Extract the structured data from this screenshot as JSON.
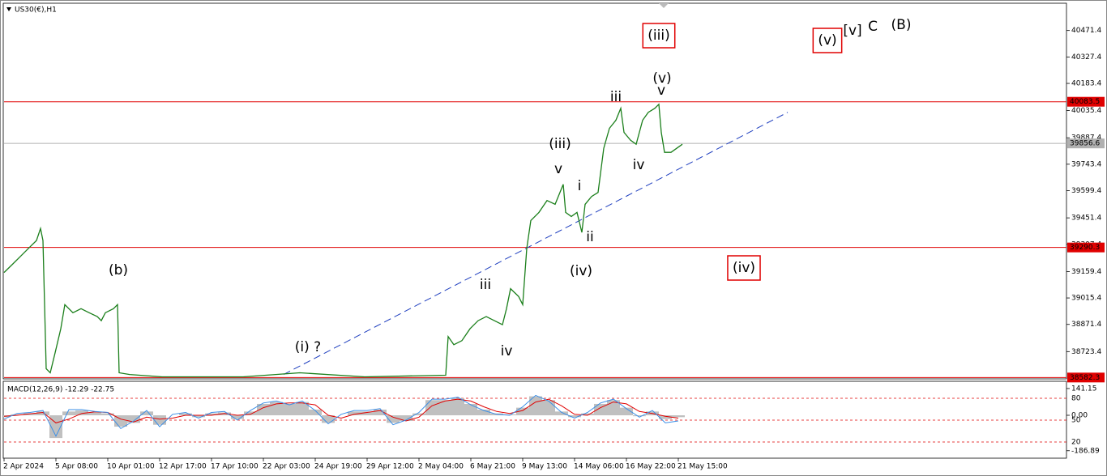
{
  "chart_data": [
    {
      "type": "line",
      "title": "US30(€),H1",
      "color": "#1b7f1b",
      "x": [
        0,
        1.25,
        2.5,
        3.75,
        5,
        5.625,
        6,
        6.5,
        7.125,
        7.875,
        8.75,
        9.375,
        10.625,
        11.875,
        13.125,
        14.375,
        15,
        15.625,
        16.875,
        17.5,
        17.75,
        19.375,
        24.375,
        36.875,
        45.625,
        55.625,
        68.125,
        68.5,
        69.375,
        70.625,
        71.875,
        73.125,
        74.375,
        75.625,
        76.875,
        77.5,
        78.125,
        79.375,
        80,
        80.625,
        81.25,
        82.5,
        83.75,
        85,
        86.25,
        86.625,
        87.5,
        88.375,
        89.125,
        89.625,
        90.625,
        91.625,
        92.5,
        93.375,
        94.375,
        95.125,
        95.625,
        96.625,
        97.5,
        98.5,
        99.375,
        100.375,
        101,
        101.375,
        101.875,
        102.875,
        103.75,
        104.625
      ],
      "values": [
        39154,
        39197,
        39241,
        39285,
        39328,
        39394,
        39328,
        38630,
        38608,
        38717,
        38848,
        38979,
        38935,
        38957,
        38935,
        38914,
        38892,
        38935,
        38957,
        38979,
        38608,
        38599,
        38586,
        38586,
        38608,
        38586,
        38595,
        38805,
        38761,
        38783,
        38848,
        38892,
        38914,
        38892,
        38870,
        38957,
        39066,
        39023,
        38979,
        39285,
        39437,
        39481,
        39546,
        39525,
        39634,
        39481,
        39459,
        39481,
        39372,
        39525,
        39568,
        39590,
        39830,
        39939,
        39983,
        40048,
        39917,
        39874,
        39852,
        39983,
        40026,
        40048,
        40070,
        39917,
        39808,
        39808,
        39830,
        39852
      ],
      "xlim": [
        0,
        163.875
      ],
      "ylim": [
        38579.4,
        40615.4
      ],
      "xticks": [
        {
          "value": 0,
          "label": "2 Apr 2024"
        },
        {
          "value": 8,
          "label": "5 Apr 08:00"
        },
        {
          "value": 16,
          "label": "10 Apr 01:00"
        },
        {
          "value": 24,
          "label": "12 Apr 17:00"
        },
        {
          "value": 32,
          "label": "17 Apr 10:00"
        },
        {
          "value": 40,
          "label": "22 Apr 03:00"
        },
        {
          "value": 48,
          "label": "24 Apr 19:00"
        },
        {
          "value": 56,
          "label": "29 Apr 12:00"
        },
        {
          "value": 64,
          "label": "2 May 04:00"
        },
        {
          "value": 72,
          "label": "6 May 21:00"
        },
        {
          "value": 80,
          "label": "9 May 13:00"
        },
        {
          "value": 88,
          "label": "14 May 06:00"
        },
        {
          "value": 96,
          "label": "16 May 22:00"
        },
        {
          "value": 104,
          "label": "21 May 15:00"
        }
      ],
      "yticks": [
        40471.4,
        40327.4,
        40183.4,
        40035.4,
        39887.4,
        39743.4,
        39599.4,
        39451.4,
        39307.4,
        39159.4,
        39015.4,
        38871.4,
        38723.4
      ],
      "hlines": [
        {
          "value": 40083.5,
          "color": "#e00000"
        },
        {
          "value": 39856.6,
          "color": "#b0b0b0"
        },
        {
          "value": 39290.3,
          "color": "#e00000"
        },
        {
          "value": 38582.3,
          "color": "#e00000"
        }
      ],
      "trendline": {
        "x": [
          43.125,
          120.875
        ],
        "values": [
          38599,
          40026
        ],
        "color": "#1f3fbf"
      },
      "annotations": [
        {
          "text": "(iii)",
          "color": "#1a1ad6",
          "boxed": true
        },
        {
          "text": "(v)",
          "color": "#1a1ad6",
          "boxed": true
        },
        {
          "text": "[v]",
          "color": "#1b8f1b",
          "boxed": false
        },
        {
          "text": "C",
          "color": "#1a1ad6",
          "boxed": false
        },
        {
          "text": "(B)",
          "color": "#e00000",
          "boxed": false
        },
        {
          "text": "(v)",
          "color": "#1a1ad6",
          "boxed": false
        },
        {
          "text": "v",
          "color": "#e020e0",
          "boxed": false
        },
        {
          "text": "iii",
          "color": "#e020e0",
          "boxed": false
        },
        {
          "text": "(iii)",
          "color": "#1a1ad6",
          "boxed": false
        },
        {
          "text": "v",
          "color": "#e020e0",
          "boxed": false
        },
        {
          "text": "iv",
          "color": "#e020e0",
          "boxed": false
        },
        {
          "text": "i",
          "color": "#e020e0",
          "boxed": false
        },
        {
          "text": "ii",
          "color": "#e020e0",
          "boxed": false
        },
        {
          "text": "(iv)",
          "color": "#1a1ad6",
          "boxed": false
        },
        {
          "text": "(iv)",
          "color": "#1a1ad6",
          "boxed": true
        },
        {
          "text": "(b)",
          "color": "#1a1ad6",
          "boxed": false
        },
        {
          "text": "iii",
          "color": "#e020e0",
          "boxed": false
        },
        {
          "text": "iv",
          "color": "#e020e0",
          "boxed": false
        },
        {
          "text": "(i) ?",
          "color": "#1a1ad6",
          "boxed": false
        }
      ]
    },
    {
      "type": "macd",
      "title": "MACD(12,26,9) -12.29 -22.75",
      "x": [
        0,
        2,
        4,
        6,
        8,
        10,
        12,
        14,
        16,
        18,
        20,
        22,
        24,
        26,
        28,
        30,
        32,
        34,
        36,
        38,
        40,
        42,
        44,
        46,
        48,
        50,
        52,
        54,
        56,
        58,
        60,
        62,
        64,
        66,
        68,
        70,
        72,
        74,
        76,
        78,
        80,
        82,
        84,
        86,
        88,
        90,
        92,
        94,
        96,
        98,
        100,
        102,
        104
      ],
      "ylim": [
        -222,
        175
      ],
      "yticks": [
        141.15,
        {
          "value": 0,
          "label": "0.00"
        },
        -186.89
      ],
      "levels": [
        "80",
        "50",
        "20"
      ],
      "series": [
        {
          "color": "#c0c0c0",
          "values": [
            -10,
            5,
            10,
            20,
            -120,
            20,
            25,
            15,
            10,
            -60,
            -40,
            20,
            -50,
            0,
            10,
            -10,
            10,
            15,
            -20,
            20,
            60,
            70,
            60,
            70,
            30,
            -40,
            0,
            20,
            20,
            30,
            -40,
            -30,
            10,
            80,
            80,
            90,
            60,
            30,
            10,
            5,
            40,
            100,
            80,
            20,
            -10,
            10,
            60,
            80,
            40,
            -5,
            20,
            -20,
            -10
          ]
        },
        {
          "color": "#e00000",
          "values": [
            -5,
            0,
            8,
            15,
            -40,
            -20,
            10,
            18,
            15,
            -20,
            -35,
            -10,
            -20,
            -15,
            0,
            0,
            0,
            10,
            0,
            5,
            40,
            60,
            65,
            65,
            55,
            0,
            -15,
            5,
            15,
            25,
            -10,
            -30,
            -10,
            50,
            75,
            85,
            75,
            45,
            20,
            10,
            25,
            70,
            85,
            50,
            5,
            0,
            40,
            70,
            60,
            20,
            10,
            -5,
            -15
          ]
        },
        {
          "color": "#3a8ee6",
          "values": [
            -20,
            10,
            15,
            25,
            -110,
            30,
            30,
            20,
            15,
            -70,
            -30,
            25,
            -60,
            5,
            15,
            -15,
            15,
            20,
            -25,
            25,
            65,
            75,
            55,
            75,
            25,
            -45,
            5,
            25,
            25,
            35,
            -50,
            -25,
            15,
            85,
            85,
            95,
            55,
            25,
            5,
            0,
            45,
            105,
            75,
            15,
            -15,
            15,
            65,
            85,
            35,
            -10,
            25,
            -40,
            -30
          ]
        }
      ]
    }
  ]
}
